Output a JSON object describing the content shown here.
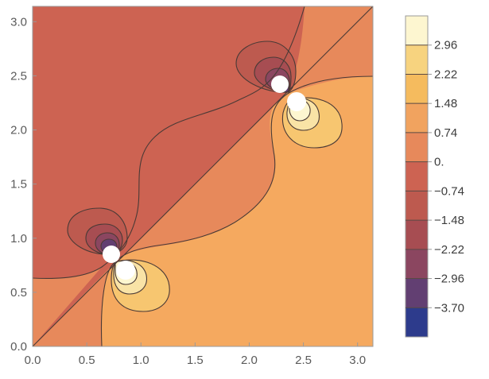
{
  "chart_data": {
    "type": "heatmap",
    "subtype": "contour",
    "title": "",
    "xlabel": "",
    "ylabel": "",
    "xlim": [
      0,
      3.1416
    ],
    "ylim": [
      0,
      3.1416
    ],
    "x_ticks": [
      "0.0",
      "0.5",
      "1.0",
      "1.5",
      "2.0",
      "2.5",
      "3.0"
    ],
    "y_ticks": [
      "0.0",
      "0.5",
      "1.0",
      "1.5",
      "2.0",
      "2.5",
      "3.0"
    ],
    "contour_levels": [
      -3.7,
      -2.96,
      -2.22,
      -1.48,
      -0.74,
      0.0,
      0.74,
      1.48,
      2.22,
      2.96
    ],
    "legend": {
      "placement": "right",
      "labels": [
        "2.96",
        "2.22",
        "1.48",
        "0.74",
        "0.",
        "−0.74",
        "−1.48",
        "−2.22",
        "−2.96",
        "−3.70"
      ],
      "bins": [
        {
          "from": 2.96,
          "to": 3.7,
          "color": "#fdf6d0"
        },
        {
          "from": 2.22,
          "to": 2.96,
          "color": "#f7d37f"
        },
        {
          "from": 1.48,
          "to": 2.22,
          "color": "#f5bb5e"
        },
        {
          "from": 0.74,
          "to": 1.48,
          "color": "#f1a35f"
        },
        {
          "from": 0.0,
          "to": 0.74,
          "color": "#e7895b"
        },
        {
          "from": -0.74,
          "to": 0.0,
          "color": "#cd6352"
        },
        {
          "from": -1.48,
          "to": -0.74,
          "color": "#bd5a4f"
        },
        {
          "from": -2.22,
          "to": -1.48,
          "color": "#a74d52"
        },
        {
          "from": -2.96,
          "to": -2.22,
          "color": "#8b4660"
        },
        {
          "from": -3.7,
          "to": -2.96,
          "color": "#623f72"
        },
        {
          "from": -4.44,
          "to": -3.7,
          "color": "#2d3b8c"
        }
      ]
    },
    "singularities": [
      {
        "x": 0.72,
        "y": 0.83
      },
      {
        "x": 0.85,
        "y": 0.7
      },
      {
        "x": 2.29,
        "y": 2.41
      },
      {
        "x": 2.43,
        "y": 2.28
      }
    ],
    "diagonal_contour": {
      "from": [
        0,
        0
      ],
      "to": [
        3.1416,
        3.1416
      ]
    }
  }
}
